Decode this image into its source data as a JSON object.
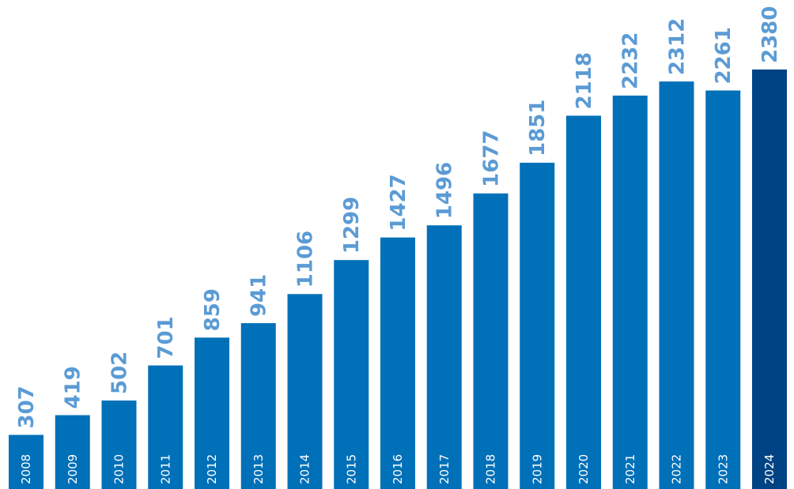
{
  "chart_data": {
    "type": "bar",
    "title": "",
    "xlabel": "",
    "ylabel": "",
    "categories": [
      "2008",
      "2009",
      "2010",
      "2011",
      "2012",
      "2013",
      "2014",
      "2015",
      "2016",
      "2017",
      "2018",
      "2019",
      "2020",
      "2021",
      "2022",
      "2023",
      "2024"
    ],
    "values": [
      307,
      419,
      502,
      701,
      859,
      941,
      1106,
      1299,
      1427,
      1496,
      1677,
      1851,
      2118,
      2232,
      2312,
      2261,
      2380
    ],
    "ylim": [
      0,
      2380
    ],
    "grid": false,
    "legend": "none",
    "data_labels": "above-bar-rotated",
    "tick_labels": "inside-bar-rotated",
    "colors": {
      "bar": "#0070b8",
      "highlight_bar": "#004384",
      "value_label": "#5b9bd5",
      "tick_label": "#ffffff"
    },
    "highlight_index": 16
  }
}
